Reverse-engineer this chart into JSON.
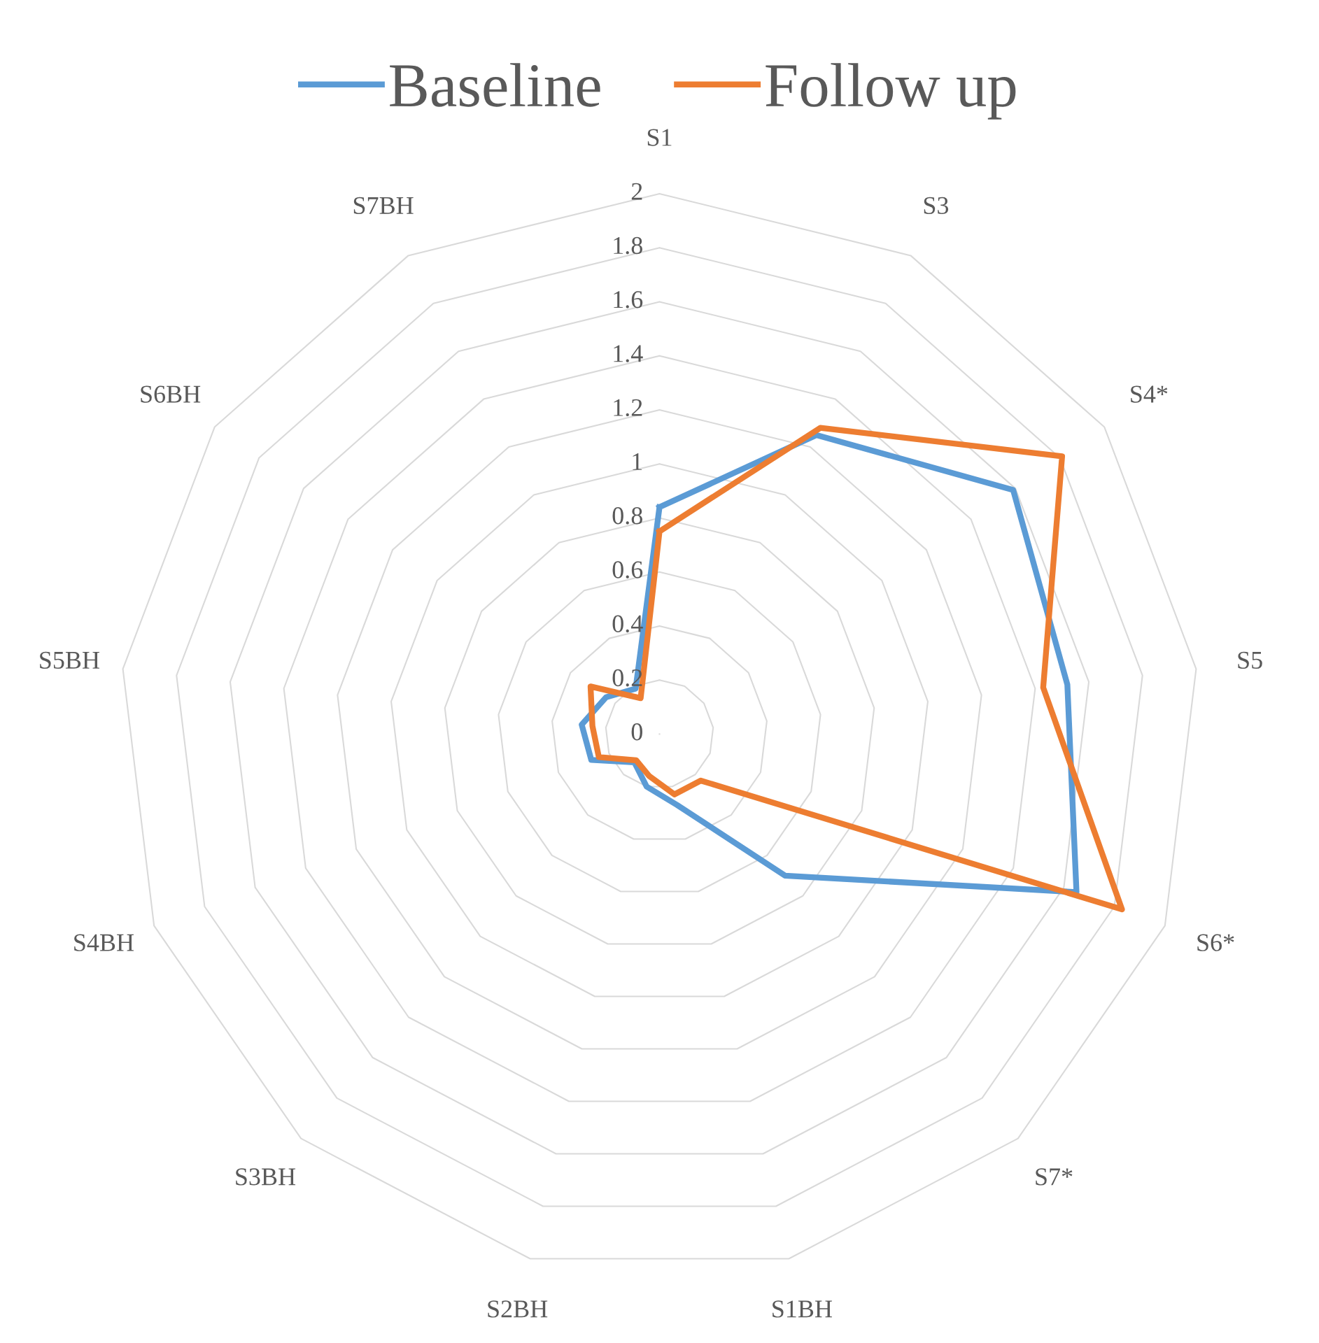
{
  "chart_data": {
    "type": "radar",
    "categories": [
      "S1",
      "S3",
      "S4*",
      "S5",
      "S6*",
      "S7*",
      "S1BH",
      "S2BH",
      "S3BH",
      "S4BH",
      "S5BH",
      "S6BH",
      "S7BH"
    ],
    "ylim": [
      0,
      2
    ],
    "yticks": [
      0,
      0.2,
      0.4,
      0.6,
      0.8,
      1,
      1.2,
      1.4,
      1.6,
      1.8,
      2
    ],
    "grid": true,
    "legend": "top",
    "series": [
      {
        "name": "Baseline",
        "color": "#5b9bd5",
        "values": [
          0.84,
          1.25,
          1.59,
          1.52,
          1.65,
          0.7,
          0.27,
          0.2,
          0.14,
          0.27,
          0.29,
          0.24,
          0.19
        ]
      },
      {
        "name": "Follow up",
        "color": "#ed7d31",
        "values": [
          0.75,
          1.28,
          1.81,
          1.43,
          1.83,
          0.23,
          0.23,
          0.16,
          0.13,
          0.24,
          0.25,
          0.31,
          0.15
        ]
      }
    ]
  }
}
